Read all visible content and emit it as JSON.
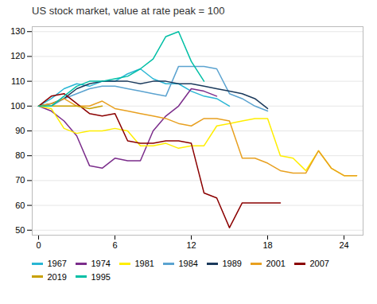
{
  "chart_data": {
    "type": "line",
    "title": "US stock market, value at rate peak = 100",
    "xlim": [
      -0.5,
      25.5
    ],
    "ylim": [
      48,
      132
    ],
    "xticks": [
      0,
      6,
      12,
      18,
      24
    ],
    "yticks": [
      50,
      60,
      70,
      80,
      90,
      100,
      110,
      120,
      130
    ],
    "grid": "y",
    "legend": "bottom",
    "series": [
      {
        "name": "1967",
        "color": "#29B6D4",
        "x": [
          0,
          1,
          2,
          3,
          4,
          5,
          6,
          7,
          8,
          9,
          10,
          11,
          12,
          13,
          14,
          15
        ],
        "values": [
          100,
          103,
          107,
          109,
          108,
          110,
          110,
          113,
          115,
          111,
          109,
          109,
          106,
          104,
          103,
          100
        ]
      },
      {
        "name": "1974",
        "color": "#7B2D8B",
        "x": [
          0,
          1,
          2,
          3,
          4,
          5,
          6,
          7,
          8,
          9,
          10,
          11,
          12,
          13,
          14
        ],
        "values": [
          100,
          98,
          94,
          88,
          76,
          75,
          79,
          78,
          78,
          90,
          96,
          100,
          107,
          106,
          104
        ]
      },
      {
        "name": "1981",
        "color": "#FFEE00",
        "x": [
          0,
          1,
          2,
          3,
          4,
          5,
          6,
          7,
          8,
          9,
          10,
          11,
          12,
          13,
          14,
          15,
          16,
          17,
          18,
          19,
          20,
          21,
          22,
          23,
          24,
          25
        ],
        "values": [
          100,
          99,
          91,
          89,
          90,
          90,
          91,
          90,
          84,
          84,
          85,
          83,
          84,
          84,
          92,
          93,
          94,
          95,
          95,
          80,
          79,
          74,
          82,
          75,
          72,
          72
        ]
      },
      {
        "name": "1984",
        "color": "#5BA3D0",
        "x": [
          0,
          1,
          2,
          3,
          4,
          5,
          6,
          7,
          8,
          9,
          10,
          11,
          12,
          13,
          14,
          15,
          16,
          17,
          18
        ],
        "values": [
          100,
          100,
          103,
          105,
          107,
          108,
          108,
          107,
          106,
          105,
          104,
          116,
          116,
          116,
          115,
          105,
          103,
          100,
          98
        ]
      },
      {
        "name": "1989",
        "color": "#1B3A5C",
        "x": [
          0,
          1,
          2,
          3,
          4,
          5,
          6,
          7,
          8,
          9,
          10,
          11,
          12,
          13,
          14,
          15,
          16,
          17,
          18
        ],
        "values": [
          100,
          101,
          103,
          107,
          109,
          110,
          110,
          110,
          109,
          110,
          110,
          109,
          109,
          108,
          107,
          106,
          105,
          103,
          99
        ]
      },
      {
        "name": "2001",
        "color": "#E8A020",
        "x": [
          0,
          1,
          2,
          3,
          4,
          5,
          6,
          7,
          8,
          9,
          10,
          11,
          12,
          13,
          14,
          15,
          16,
          17,
          18,
          19,
          20,
          21,
          22,
          23,
          24,
          25
        ],
        "values": [
          100,
          101,
          103,
          100,
          100,
          102,
          99,
          98,
          97,
          96,
          95,
          93,
          92,
          95,
          95,
          94,
          79,
          79,
          77,
          74,
          73,
          73,
          82,
          75,
          72,
          72
        ]
      },
      {
        "name": "2007",
        "color": "#8B0000",
        "x": [
          0,
          1,
          2,
          3,
          4,
          5,
          6,
          7,
          8,
          9,
          10,
          11,
          12,
          13,
          14,
          15,
          16,
          17,
          18,
          19
        ],
        "values": [
          100,
          104,
          105,
          101,
          97,
          96,
          97,
          86,
          85,
          85,
          86,
          86,
          85,
          65,
          63,
          51,
          61,
          61,
          61,
          61
        ]
      },
      {
        "name": "2019",
        "color": "#C8A000",
        "x": [
          0,
          1,
          2,
          3,
          4,
          5
        ],
        "values": [
          100,
          100,
          100,
          100,
          99,
          100
        ]
      },
      {
        "name": "1995",
        "color": "#00BFA5",
        "x": [
          0,
          1,
          2,
          3,
          4,
          5,
          6,
          7,
          8,
          9,
          10,
          11,
          12,
          13
        ],
        "values": [
          100,
          100,
          104,
          108,
          110,
          110,
          111,
          112,
          115,
          119,
          128,
          130,
          118,
          110
        ]
      }
    ]
  }
}
